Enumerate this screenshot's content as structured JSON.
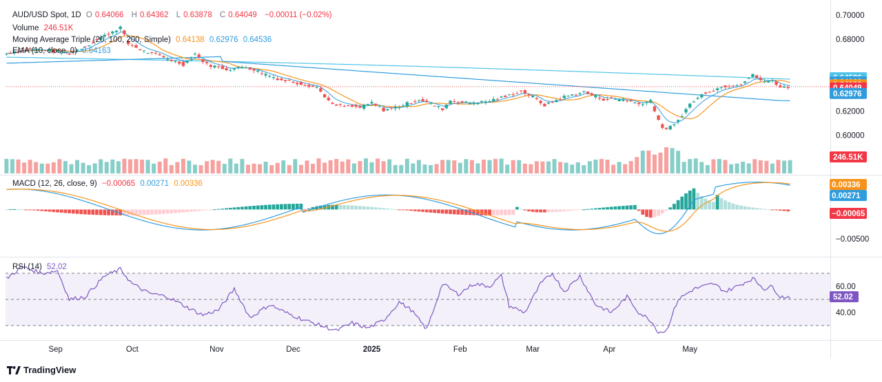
{
  "header": {
    "symbol": "AUD/USD Spot, 1D",
    "open_label": "O",
    "open": "0.64066",
    "high_label": "H",
    "high": "0.64362",
    "low_label": "L",
    "low": "0.63878",
    "close_label": "C",
    "close": "0.64049",
    "change": "−0.00011 (−0.02%)",
    "volume_label": "Volume",
    "volume": "246.51K",
    "ma_label": "Moving Average Triple (20, 100, 200, Simple)",
    "ma20": "0.64138",
    "ma100": "0.62976",
    "ma200": "0.64536",
    "ema_label": "EMA (10, close, 0)",
    "ema": "0.64163",
    "macd_label": "MACD (12, 26, close, 9)",
    "macd_hist": "−0.00065",
    "macd_line": "0.00271",
    "macd_signal": "0.00336",
    "rsi_label": "RSI (14)",
    "rsi": "52.02"
  },
  "footer": {
    "brand": "TradingView"
  },
  "colors": {
    "up": "#26a69a",
    "down": "#ef5350",
    "ma20": "#f7931a",
    "ma100": "#2f9cde",
    "ma200": "#4fc3e8",
    "ema": "#2f9cde",
    "rsi": "#7e57c2",
    "macd": "#2f9cde",
    "signal": "#f7931a"
  },
  "chart_data": [
    {
      "type": "candlestick",
      "title": "AUD/USD Spot, 1D",
      "x_ticks": [
        "Sep",
        "Oct",
        "Nov",
        "Dec",
        "2025",
        "Feb",
        "Mar",
        "Apr",
        "May"
      ],
      "y_ticks": [
        "0.70000",
        "0.68000",
        "0.62000",
        "0.60000"
      ],
      "ylim": [
        0.588,
        0.702
      ],
      "close_path": [
        [
          0,
          0.668
        ],
        [
          8,
          0.672
        ],
        [
          20,
          0.671
        ],
        [
          32,
          0.668
        ],
        [
          40,
          0.674
        ],
        [
          50,
          0.683
        ],
        [
          58,
          0.69
        ],
        [
          62,
          0.676
        ],
        [
          70,
          0.67
        ],
        [
          80,
          0.665
        ],
        [
          90,
          0.659
        ],
        [
          96,
          0.668
        ],
        [
          102,
          0.659
        ],
        [
          112,
          0.655
        ],
        [
          122,
          0.657
        ],
        [
          130,
          0.652
        ],
        [
          140,
          0.646
        ],
        [
          150,
          0.643
        ],
        [
          158,
          0.64
        ],
        [
          166,
          0.625
        ],
        [
          174,
          0.624
        ],
        [
          180,
          0.623
        ],
        [
          186,
          0.627
        ],
        [
          192,
          0.621
        ],
        [
          200,
          0.624
        ],
        [
          210,
          0.63
        ],
        [
          216,
          0.626
        ],
        [
          222,
          0.622
        ],
        [
          226,
          0.629
        ],
        [
          234,
          0.627
        ],
        [
          244,
          0.628
        ],
        [
          254,
          0.632
        ],
        [
          262,
          0.637
        ],
        [
          268,
          0.632
        ],
        [
          274,
          0.625
        ],
        [
          284,
          0.632
        ],
        [
          294,
          0.636
        ],
        [
          304,
          0.63
        ],
        [
          314,
          0.63
        ],
        [
          322,
          0.626
        ],
        [
          328,
          0.629
        ],
        [
          334,
          0.605
        ],
        [
          340,
          0.608
        ],
        [
          348,
          0.626
        ],
        [
          356,
          0.636
        ],
        [
          366,
          0.641
        ],
        [
          374,
          0.643
        ],
        [
          380,
          0.65
        ],
        [
          386,
          0.644
        ],
        [
          390,
          0.646
        ],
        [
          394,
          0.64
        ]
      ],
      "volume_label": "246.51K",
      "series": [
        {
          "name": "0.64049",
          "values": "close"
        },
        {
          "name": "0.64138",
          "note": "MA 20"
        },
        {
          "name": "0.62976",
          "note": "MA 100"
        },
        {
          "name": "0.64536",
          "note": "MA 200"
        },
        {
          "name": "0.64163",
          "note": "EMA 10"
        }
      ]
    },
    {
      "type": "line",
      "title": "MACD (12, 26, close, 9)",
      "y_ticks": [
        "-0.00500"
      ],
      "ylim": [
        -0.0075,
        0.005
      ],
      "last_values": {
        "macd": "0.00271",
        "signal": "0.00336",
        "histogram": "-0.00065"
      }
    },
    {
      "type": "line",
      "title": "RSI (14)",
      "y_ticks": [
        "60.00",
        "40.00"
      ],
      "bands": [
        30,
        70
      ],
      "ylim": [
        20,
        80
      ],
      "rsi_path": [
        [
          0,
          66
        ],
        [
          8,
          75
        ],
        [
          18,
          70
        ],
        [
          26,
          72
        ],
        [
          32,
          50
        ],
        [
          40,
          52
        ],
        [
          50,
          68
        ],
        [
          58,
          73
        ],
        [
          64,
          62
        ],
        [
          72,
          55
        ],
        [
          82,
          52
        ],
        [
          92,
          44
        ],
        [
          100,
          38
        ],
        [
          108,
          42
        ],
        [
          116,
          58
        ],
        [
          124,
          36
        ],
        [
          134,
          46
        ],
        [
          142,
          40
        ],
        [
          152,
          34
        ],
        [
          160,
          30
        ],
        [
          168,
          26
        ],
        [
          176,
          32
        ],
        [
          184,
          28
        ],
        [
          192,
          34
        ],
        [
          200,
          48
        ],
        [
          206,
          42
        ],
        [
          214,
          27
        ],
        [
          222,
          62
        ],
        [
          230,
          54
        ],
        [
          238,
          62
        ],
        [
          246,
          60
        ],
        [
          252,
          68
        ],
        [
          256,
          45
        ],
        [
          264,
          40
        ],
        [
          272,
          62
        ],
        [
          278,
          70
        ],
        [
          284,
          56
        ],
        [
          292,
          68
        ],
        [
          300,
          46
        ],
        [
          308,
          40
        ],
        [
          316,
          52
        ],
        [
          322,
          40
        ],
        [
          328,
          34
        ],
        [
          332,
          25
        ],
        [
          336,
          26
        ],
        [
          342,
          50
        ],
        [
          350,
          58
        ],
        [
          360,
          62
        ],
        [
          366,
          56
        ],
        [
          372,
          60
        ],
        [
          380,
          66
        ],
        [
          386,
          58
        ],
        [
          390,
          60
        ],
        [
          394,
          52
        ]
      ]
    }
  ]
}
